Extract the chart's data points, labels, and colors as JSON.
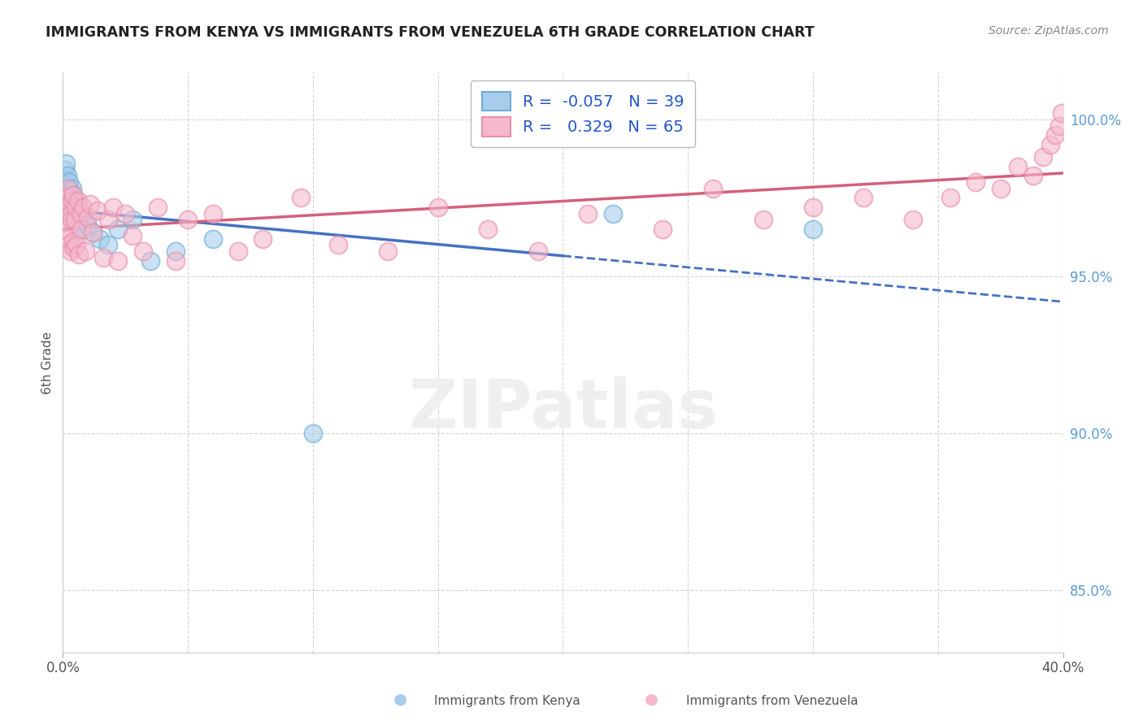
{
  "title": "IMMIGRANTS FROM KENYA VS IMMIGRANTS FROM VENEZUELA 6TH GRADE CORRELATION CHART",
  "source": "Source: ZipAtlas.com",
  "ylabel": "6th Grade",
  "kenya_R": -0.057,
  "kenya_N": 39,
  "venezuela_R": 0.329,
  "venezuela_N": 65,
  "kenya_color": "#a8ccec",
  "venezuela_color": "#f5b8cd",
  "kenya_edge_color": "#6baed6",
  "venezuela_edge_color": "#e88faa",
  "kenya_line_color": "#4472c4",
  "venezuela_line_color": "#d4607a",
  "xlim": [
    0.0,
    40.0
  ],
  "ylim": [
    83.0,
    101.5
  ],
  "y_ticks": [
    85.0,
    90.0,
    95.0,
    100.0
  ],
  "kenya_x": [
    0.05,
    0.08,
    0.1,
    0.12,
    0.15,
    0.18,
    0.2,
    0.22,
    0.25,
    0.28,
    0.3,
    0.35,
    0.38,
    0.4,
    0.42,
    0.45,
    0.48,
    0.5,
    0.52,
    0.55,
    0.58,
    0.6,
    0.65,
    0.7,
    0.75,
    0.8,
    0.9,
    1.0,
    1.2,
    1.5,
    1.8,
    2.2,
    2.8,
    3.5,
    4.5,
    6.0,
    10.0,
    22.0,
    30.0
  ],
  "kenya_y": [
    97.8,
    98.4,
    98.1,
    98.6,
    97.5,
    97.9,
    98.2,
    97.6,
    98.0,
    97.3,
    97.7,
    97.4,
    97.8,
    97.2,
    97.6,
    97.1,
    97.4,
    97.0,
    97.3,
    96.8,
    97.1,
    96.9,
    97.2,
    96.7,
    97.0,
    96.5,
    96.8,
    96.6,
    96.4,
    96.2,
    96.0,
    96.5,
    96.8,
    95.5,
    95.8,
    96.2,
    90.0,
    97.0,
    96.5
  ],
  "venezuela_x": [
    0.05,
    0.08,
    0.12,
    0.15,
    0.18,
    0.2,
    0.22,
    0.25,
    0.28,
    0.3,
    0.32,
    0.35,
    0.38,
    0.4,
    0.42,
    0.45,
    0.48,
    0.5,
    0.55,
    0.6,
    0.65,
    0.7,
    0.75,
    0.8,
    0.9,
    1.0,
    1.1,
    1.2,
    1.4,
    1.6,
    1.8,
    2.0,
    2.2,
    2.5,
    2.8,
    3.2,
    3.8,
    4.5,
    5.0,
    6.0,
    7.0,
    8.0,
    9.5,
    11.0,
    13.0,
    15.0,
    17.0,
    19.0,
    21.0,
    24.0,
    26.0,
    28.0,
    30.0,
    32.0,
    34.0,
    35.5,
    36.5,
    37.5,
    38.2,
    38.8,
    39.2,
    39.5,
    39.7,
    39.85,
    39.95
  ],
  "venezuela_y": [
    97.5,
    96.8,
    97.2,
    96.5,
    97.8,
    96.2,
    97.5,
    96.0,
    97.3,
    95.8,
    97.0,
    96.8,
    97.4,
    96.1,
    97.6,
    95.9,
    96.8,
    97.2,
    96.0,
    97.4,
    95.7,
    97.0,
    96.5,
    97.2,
    95.8,
    96.9,
    97.3,
    96.4,
    97.1,
    95.6,
    96.8,
    97.2,
    95.5,
    97.0,
    96.3,
    95.8,
    97.2,
    95.5,
    96.8,
    97.0,
    95.8,
    96.2,
    97.5,
    96.0,
    95.8,
    97.2,
    96.5,
    95.8,
    97.0,
    96.5,
    97.8,
    96.8,
    97.2,
    97.5,
    96.8,
    97.5,
    98.0,
    97.8,
    98.5,
    98.2,
    98.8,
    99.2,
    99.5,
    99.8,
    100.2
  ],
  "legend_labels": [
    "Immigrants from Kenya",
    "Immigrants from Venezuela"
  ],
  "background_color": "#ffffff",
  "grid_color": "#d0d0d0",
  "title_color": "#222222",
  "source_color": "#888888",
  "axis_label_color": "#555555",
  "ytick_color": "#5b9bd5",
  "xtick_color": "#555555",
  "watermark_text": "ZIPatlas",
  "watermark_color": "#eeeeee"
}
